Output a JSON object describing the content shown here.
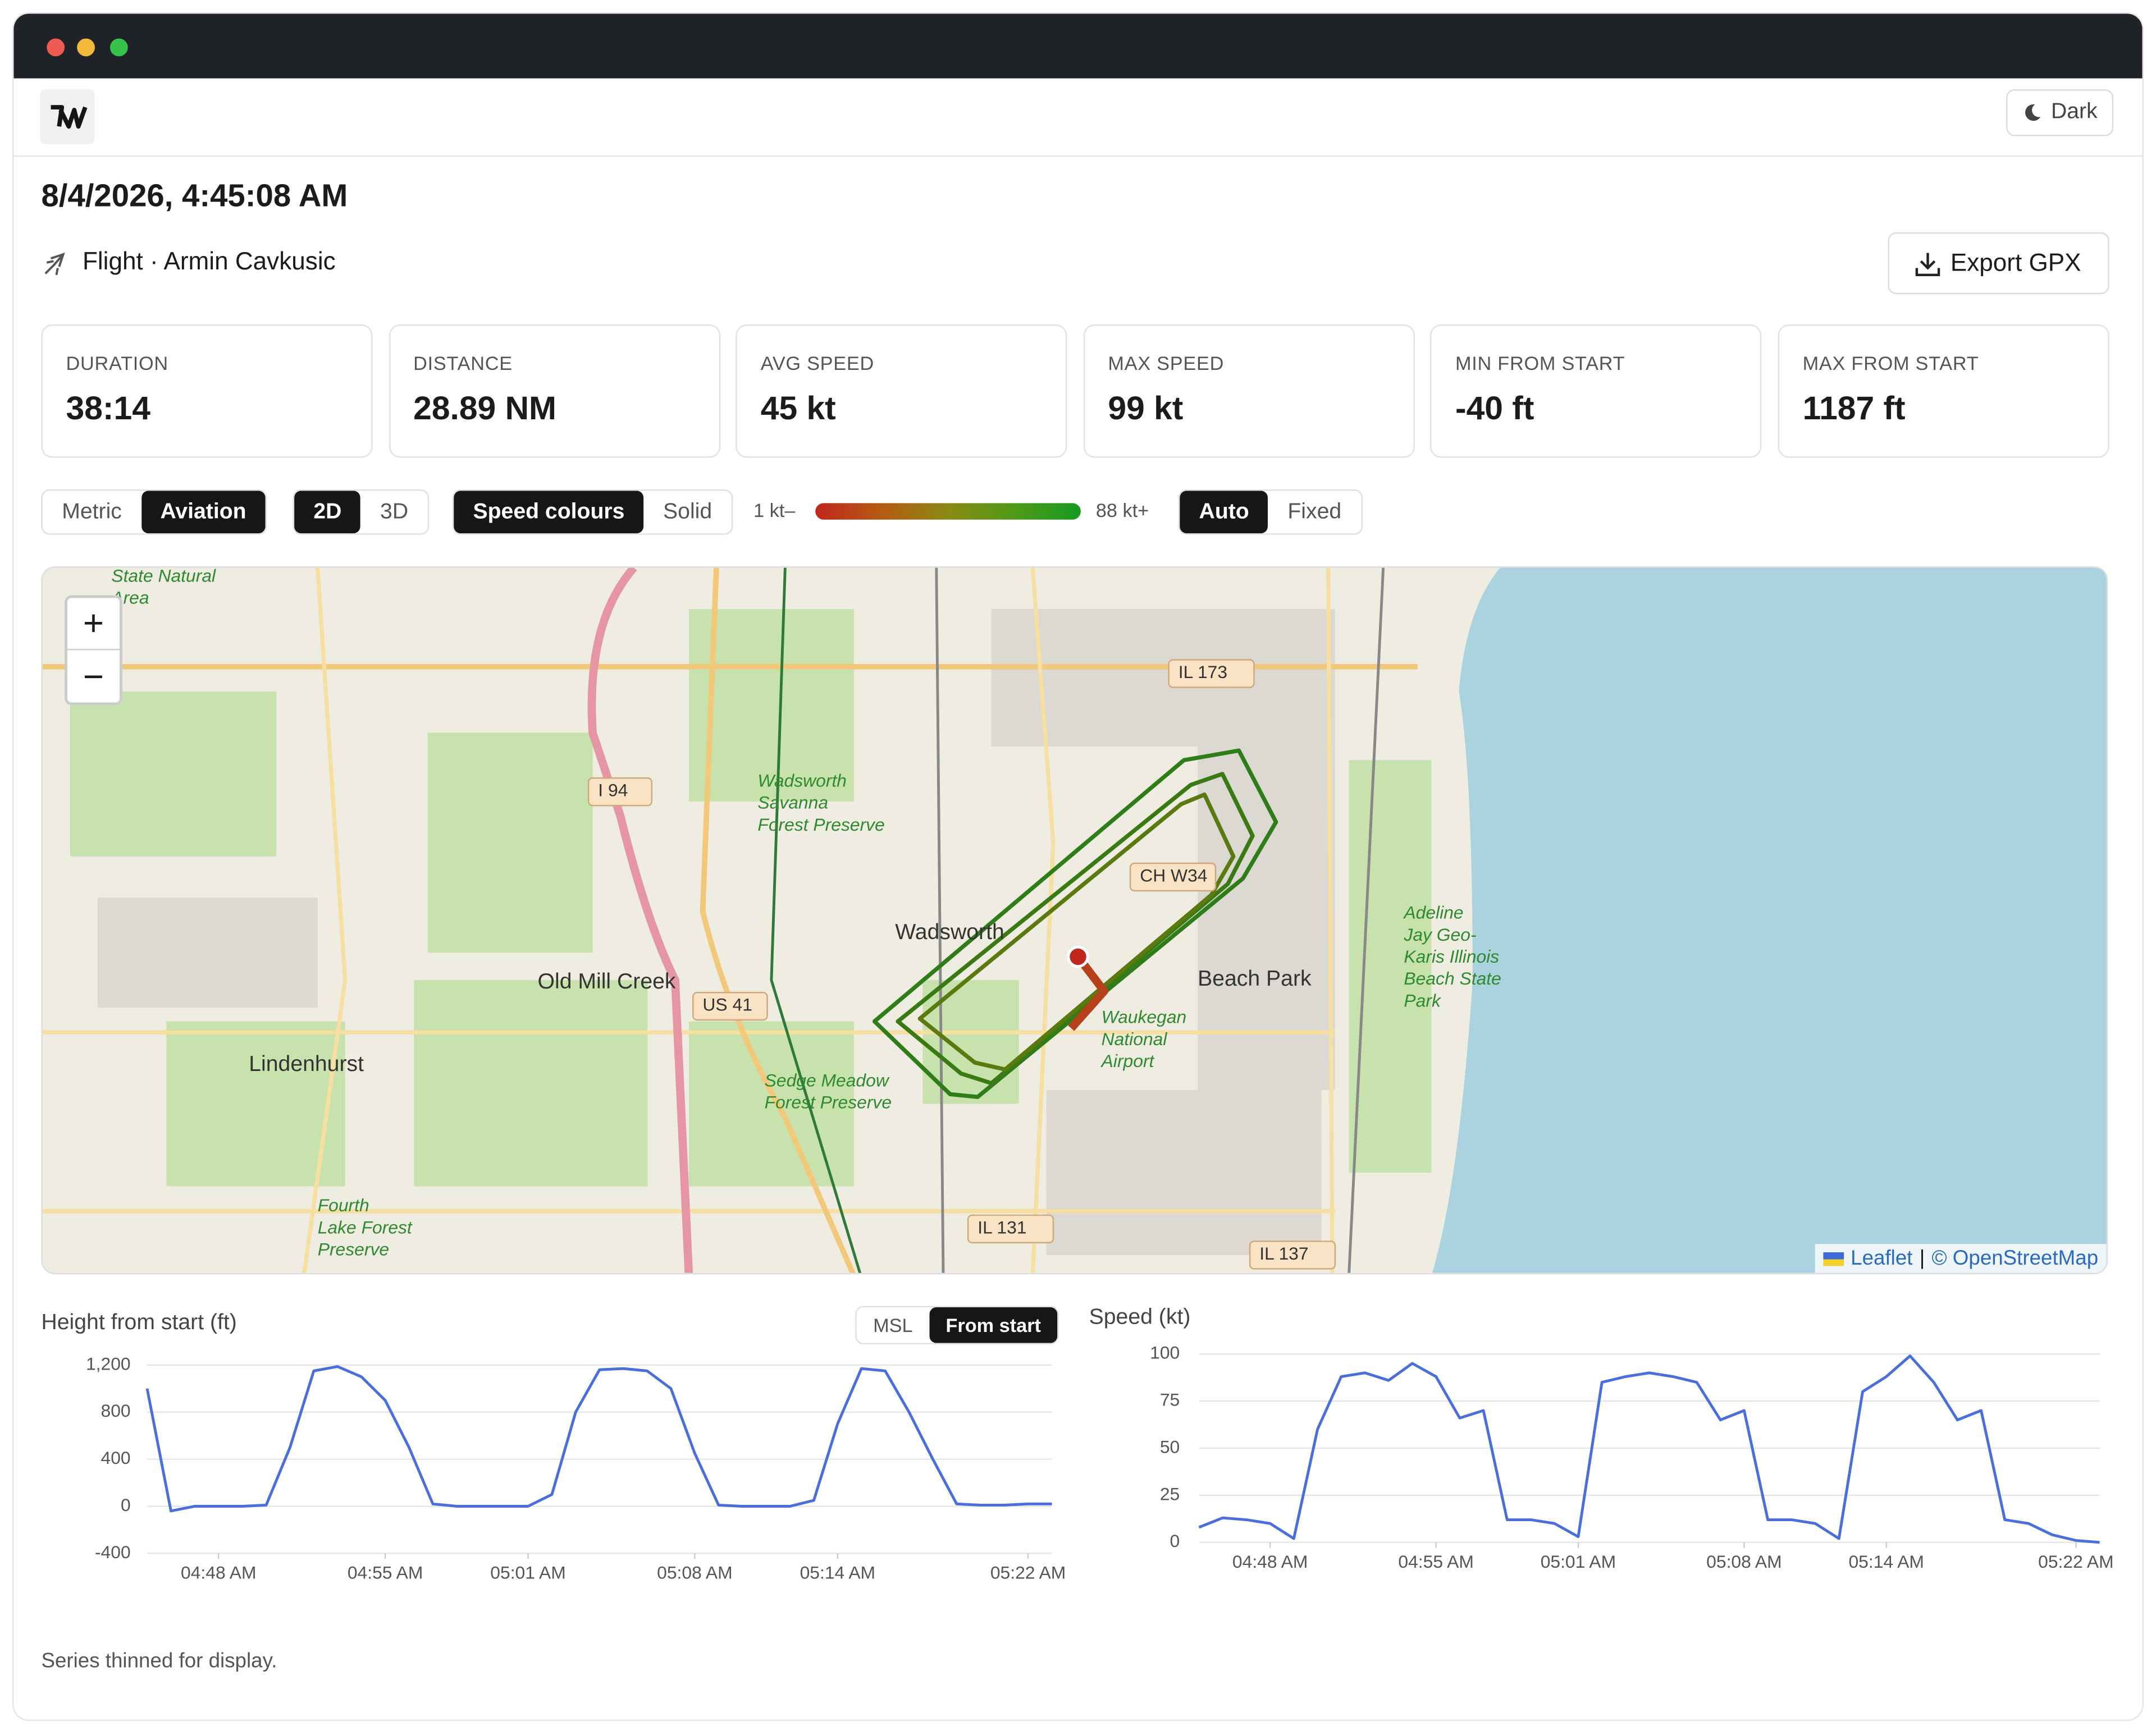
{
  "navbar": {
    "dark_button": "Dark"
  },
  "header": {
    "title": "8/4/2026, 4:45:08 AM",
    "subtitle": "Flight · Armin Cavkusic",
    "export_button": "Export GPX"
  },
  "stats": [
    {
      "label": "DURATION",
      "value": "38:14"
    },
    {
      "label": "DISTANCE",
      "value": "28.89 NM"
    },
    {
      "label": "AVG SPEED",
      "value": "45 kt"
    },
    {
      "label": "MAX SPEED",
      "value": "99 kt"
    },
    {
      "label": "MIN FROM START",
      "value": "-40 ft"
    },
    {
      "label": "MAX FROM START",
      "value": "1187 ft"
    }
  ],
  "controls": {
    "units": [
      "Metric",
      "Aviation"
    ],
    "view": [
      "2D",
      "3D"
    ],
    "colour_mode": [
      "Speed colours",
      "Solid"
    ],
    "legend_min": "1 kt–",
    "legend_max": "88 kt+",
    "scale": [
      "Auto",
      "Fixed"
    ]
  },
  "map": {
    "zoom_in": "+",
    "zoom_out": "−",
    "labels": [
      [
        "State Natural",
        "Area"
      ],
      [
        "IL 173"
      ],
      [
        "I 94"
      ],
      [
        "Wadsworth",
        "Savanna",
        "Forest Preserve"
      ],
      [
        "CH W34"
      ],
      [
        "Wadsworth"
      ],
      [
        "Old Mill Creek"
      ],
      [
        "US 41"
      ],
      [
        "Beach Park"
      ],
      [
        "Waukegan",
        "National",
        "Airport"
      ],
      [
        "Adeline",
        "Jay Geo-",
        "Karis Illinois",
        "Beach State",
        "Park"
      ],
      [
        "Lindenhurst"
      ],
      [
        "Sedge Meadow",
        "Forest Preserve"
      ],
      [
        "Fourth",
        "Lake Forest",
        "Preserve"
      ],
      [
        "IL 131"
      ],
      [
        "IL 137"
      ]
    ],
    "attribution": {
      "leaflet": "Leaflet",
      "separator": "|",
      "osm": "© OpenStreetMap"
    }
  },
  "height_toggle": [
    "MSL",
    "From start"
  ],
  "footer": "Series thinned for display.",
  "chart_data": [
    {
      "type": "line",
      "title": "Height from start (ft)",
      "color": "#4a6fdc",
      "grid": true,
      "x": [
        "04:45",
        "04:46",
        "04:47",
        "04:48",
        "04:49",
        "04:50",
        "04:51",
        "04:52",
        "04:53",
        "04:54",
        "04:55",
        "04:56",
        "04:57",
        "04:58",
        "04:59",
        "05:00",
        "05:01",
        "05:02",
        "05:03",
        "05:04",
        "05:05",
        "05:06",
        "05:07",
        "05:08",
        "05:09",
        "05:10",
        "05:11",
        "05:12",
        "05:13",
        "05:14",
        "05:15",
        "05:16",
        "05:17",
        "05:18",
        "05:19",
        "05:20",
        "05:21",
        "05:22",
        "05:23"
      ],
      "values": [
        1000,
        -40,
        0,
        0,
        0,
        10,
        500,
        1150,
        1187,
        1100,
        900,
        500,
        20,
        0,
        0,
        0,
        0,
        100,
        800,
        1160,
        1170,
        1150,
        1000,
        450,
        10,
        0,
        0,
        0,
        50,
        700,
        1170,
        1150,
        800,
        400,
        20,
        10,
        10,
        20,
        20
      ],
      "ylim": [
        -400,
        1200
      ],
      "yticks": [
        -400,
        0,
        400,
        800,
        {
          "value": 1200,
          "label": "1,200"
        }
      ],
      "xticks": [
        {
          "value": "04:48",
          "label": "04:48 AM"
        },
        {
          "value": "04:55",
          "label": "04:55 AM"
        },
        {
          "value": "05:01",
          "label": "05:01 AM"
        },
        {
          "value": "05:08",
          "label": "05:08 AM"
        },
        {
          "value": "05:14",
          "label": "05:14 AM"
        },
        {
          "value": "05:22",
          "label": "05:22 AM"
        }
      ]
    },
    {
      "type": "line",
      "title": "Speed (kt)",
      "color": "#4a6fdc",
      "grid": true,
      "x": [
        "04:45",
        "04:46",
        "04:47",
        "04:48",
        "04:49",
        "04:50",
        "04:51",
        "04:52",
        "04:53",
        "04:54",
        "04:55",
        "04:56",
        "04:57",
        "04:58",
        "04:59",
        "05:00",
        "05:01",
        "05:02",
        "05:03",
        "05:04",
        "05:05",
        "05:06",
        "05:07",
        "05:08",
        "05:09",
        "05:10",
        "05:11",
        "05:12",
        "05:13",
        "05:14",
        "05:15",
        "05:16",
        "05:17",
        "05:18",
        "05:19",
        "05:20",
        "05:21",
        "05:22",
        "05:23"
      ],
      "values": [
        8,
        13,
        12,
        10,
        2,
        60,
        88,
        90,
        86,
        95,
        88,
        66,
        70,
        12,
        12,
        10,
        3,
        85,
        88,
        90,
        88,
        85,
        65,
        70,
        12,
        12,
        10,
        2,
        80,
        88,
        99,
        85,
        65,
        70,
        12,
        10,
        4,
        1,
        0
      ],
      "ylim": [
        0,
        100
      ],
      "yticks": [
        0,
        25,
        50,
        75,
        100
      ],
      "xticks": [
        {
          "value": "04:48",
          "label": "04:48 AM"
        },
        {
          "value": "04:55",
          "label": "04:55 AM"
        },
        {
          "value": "05:01",
          "label": "05:01 AM"
        },
        {
          "value": "05:08",
          "label": "05:08 AM"
        },
        {
          "value": "05:14",
          "label": "05:14 AM"
        },
        {
          "value": "05:22",
          "label": "05:22 AM"
        }
      ]
    }
  ]
}
